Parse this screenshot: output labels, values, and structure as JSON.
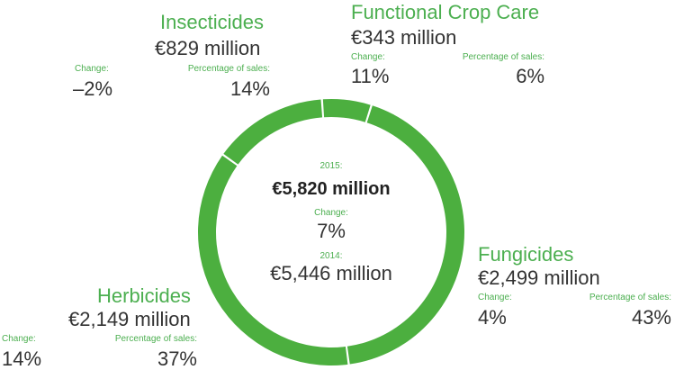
{
  "chart_data": {
    "type": "pie",
    "donut": true,
    "center": {
      "year_label": "2015:",
      "total": "€5,820 million",
      "change_label": "Change:",
      "change_value": "7%",
      "prev_year_label": "2014:",
      "prev_total": "€5,446 million"
    },
    "segments": [
      {
        "name": "Functional Crop Care",
        "amount": "€343 million",
        "share": 6,
        "change_label": "Change:",
        "change": "11%",
        "pct_label": "Percentage of sales:",
        "pct": "6%"
      },
      {
        "name": "Fungicides",
        "amount": "€2,499 million",
        "share": 43,
        "change_label": "Change:",
        "change": "4%",
        "pct_label": "Percentage of sales:",
        "pct": "43%"
      },
      {
        "name": "Herbicides",
        "amount": "€2,149 million",
        "share": 37,
        "change_label": "Change:",
        "change": "14%",
        "pct_label": "Percentage of sales:",
        "pct": "37%"
      },
      {
        "name": "Insecticides",
        "amount": "€829 million",
        "share": 14,
        "change_label": "Change:",
        "change": "–2%",
        "pct_label": "Percentage of sales:",
        "pct": "14%"
      }
    ],
    "colors": {
      "segment": "#4caf3f",
      "label": "#4caf50",
      "divider": "#ffffff"
    }
  }
}
